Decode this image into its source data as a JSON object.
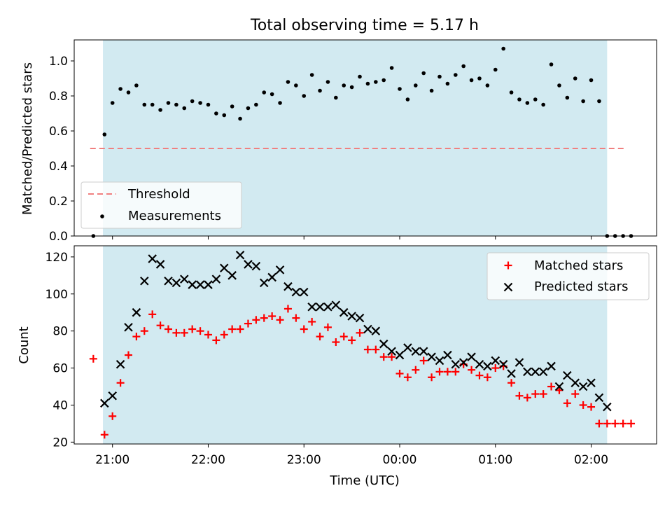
{
  "title": "Total observing time = 5.17 h",
  "colors": {
    "shade": "#add8e6",
    "threshold": "#f08080",
    "measurement": "#000000",
    "matched": "#ff0000",
    "predicted": "#000000"
  },
  "chart_data": [
    {
      "type": "scatter",
      "title": "Total observing time = 5.17 h",
      "xlabel": "",
      "ylabel": "Matched/Predicted stars",
      "ylim": [
        0,
        1.12
      ],
      "yticks": [
        0.0,
        0.2,
        0.4,
        0.6,
        0.8,
        1.0
      ],
      "ytick_labels": [
        "0.0",
        "0.2",
        "0.4",
        "0.6",
        "0.8",
        "1.0"
      ],
      "shaded_region": [
        "20:54",
        "02:10"
      ],
      "threshold": {
        "value": 0.5,
        "x_start": "20:46",
        "x_end": "02:22",
        "label": "Threshold"
      },
      "legend": {
        "position": "lower-left",
        "entries": [
          "Threshold",
          "Measurements"
        ]
      },
      "series": [
        {
          "name": "Measurements",
          "x": [
            "20:48",
            "20:55",
            "21:00",
            "21:05",
            "21:10",
            "21:15",
            "21:20",
            "21:25",
            "21:30",
            "21:35",
            "21:40",
            "21:45",
            "21:50",
            "21:55",
            "22:00",
            "22:05",
            "22:10",
            "22:15",
            "22:20",
            "22:25",
            "22:30",
            "22:35",
            "22:40",
            "22:45",
            "22:50",
            "22:55",
            "23:00",
            "23:05",
            "23:10",
            "23:15",
            "23:20",
            "23:25",
            "23:30",
            "23:35",
            "23:40",
            "23:45",
            "23:50",
            "23:55",
            "00:00",
            "00:05",
            "00:10",
            "00:15",
            "00:20",
            "00:25",
            "00:30",
            "00:35",
            "00:40",
            "00:45",
            "00:50",
            "00:55",
            "01:00",
            "01:05",
            "01:10",
            "01:15",
            "01:20",
            "01:25",
            "01:30",
            "01:35",
            "01:40",
            "01:45",
            "01:50",
            "01:55",
            "02:00",
            "02:05",
            "02:10",
            "02:15",
            "02:20",
            "02:25"
          ],
          "y": [
            0.0,
            0.58,
            0.76,
            0.84,
            0.82,
            0.86,
            0.75,
            0.75,
            0.72,
            0.76,
            0.75,
            0.73,
            0.77,
            0.76,
            0.75,
            0.7,
            0.69,
            0.74,
            0.67,
            0.73,
            0.75,
            0.82,
            0.81,
            0.76,
            0.88,
            0.86,
            0.8,
            0.92,
            0.83,
            0.88,
            0.79,
            0.86,
            0.85,
            0.91,
            0.87,
            0.88,
            0.89,
            0.96,
            0.84,
            0.78,
            0.86,
            0.93,
            0.83,
            0.91,
            0.87,
            0.92,
            0.97,
            0.89,
            0.9,
            0.86,
            0.95,
            1.07,
            0.82,
            0.78,
            0.76,
            0.78,
            0.75,
            0.98,
            0.86,
            0.79,
            0.9,
            0.77,
            0.89,
            0.77,
            0.0,
            0.0,
            0.0,
            0.0
          ]
        }
      ]
    },
    {
      "type": "scatter",
      "xlabel": "Time (UTC)",
      "ylabel": "Count",
      "ylim": [
        19,
        126
      ],
      "yticks": [
        20,
        40,
        60,
        80,
        100,
        120
      ],
      "xticks": [
        "21:00",
        "22:00",
        "23:00",
        "00:00",
        "01:00",
        "02:00"
      ],
      "shaded_region": [
        "20:54",
        "02:10"
      ],
      "legend": {
        "position": "upper-right",
        "entries": [
          "Matched stars",
          "Predicted stars"
        ]
      },
      "series": [
        {
          "name": "Matched stars",
          "x": [
            "20:48",
            "20:55",
            "21:00",
            "21:05",
            "21:10",
            "21:15",
            "21:20",
            "21:25",
            "21:30",
            "21:35",
            "21:40",
            "21:45",
            "21:50",
            "21:55",
            "22:00",
            "22:05",
            "22:10",
            "22:15",
            "22:20",
            "22:25",
            "22:30",
            "22:35",
            "22:40",
            "22:45",
            "22:50",
            "22:55",
            "23:00",
            "23:05",
            "23:10",
            "23:15",
            "23:20",
            "23:25",
            "23:30",
            "23:35",
            "23:40",
            "23:45",
            "23:50",
            "23:55",
            "00:00",
            "00:05",
            "00:10",
            "00:15",
            "00:20",
            "00:25",
            "00:30",
            "00:35",
            "00:40",
            "00:45",
            "00:50",
            "00:55",
            "01:00",
            "01:05",
            "01:10",
            "01:15",
            "01:20",
            "01:25",
            "01:30",
            "01:35",
            "01:40",
            "01:45",
            "01:50",
            "01:55",
            "02:00",
            "02:05",
            "02:10",
            "02:15",
            "02:20",
            "02:25"
          ],
          "y": [
            65,
            24,
            34,
            52,
            67,
            77,
            80,
            89,
            83,
            81,
            79,
            79,
            81,
            80,
            78,
            75,
            78,
            81,
            81,
            84,
            86,
            87,
            88,
            86,
            92,
            87,
            81,
            85,
            77,
            82,
            74,
            77,
            75,
            79,
            70,
            70,
            66,
            66,
            57,
            55,
            59,
            64,
            55,
            58,
            58,
            58,
            62,
            59,
            56,
            55,
            60,
            61,
            52,
            45,
            44,
            46,
            46,
            50,
            48,
            41,
            46,
            40,
            39,
            30,
            30,
            30,
            30,
            30
          ]
        },
        {
          "name": "Predicted stars",
          "x": [
            "20:55",
            "21:00",
            "21:05",
            "21:10",
            "21:15",
            "21:20",
            "21:25",
            "21:30",
            "21:35",
            "21:40",
            "21:45",
            "21:50",
            "21:55",
            "22:00",
            "22:05",
            "22:10",
            "22:15",
            "22:20",
            "22:25",
            "22:30",
            "22:35",
            "22:40",
            "22:45",
            "22:50",
            "22:55",
            "23:00",
            "23:05",
            "23:10",
            "23:15",
            "23:20",
            "23:25",
            "23:30",
            "23:35",
            "23:40",
            "23:45",
            "23:50",
            "23:55",
            "00:00",
            "00:05",
            "00:10",
            "00:15",
            "00:20",
            "00:25",
            "00:30",
            "00:35",
            "00:40",
            "00:45",
            "00:50",
            "00:55",
            "01:00",
            "01:05",
            "01:10",
            "01:15",
            "01:20",
            "01:25",
            "01:30",
            "01:35",
            "01:40",
            "01:45",
            "01:50",
            "01:55",
            "02:00",
            "02:05",
            "02:10"
          ],
          "y": [
            41,
            45,
            62,
            82,
            90,
            107,
            119,
            116,
            107,
            106,
            108,
            105,
            105,
            105,
            108,
            114,
            110,
            121,
            116,
            115,
            106,
            109,
            113,
            104,
            101,
            101,
            93,
            93,
            93,
            94,
            90,
            88,
            87,
            81,
            80,
            73,
            69,
            67,
            71,
            69,
            69,
            66,
            64,
            67,
            62,
            63,
            66,
            62,
            61,
            64,
            62,
            57,
            63,
            58,
            58,
            58,
            61,
            50,
            56,
            52,
            50,
            52,
            44,
            39
          ]
        }
      ]
    }
  ]
}
